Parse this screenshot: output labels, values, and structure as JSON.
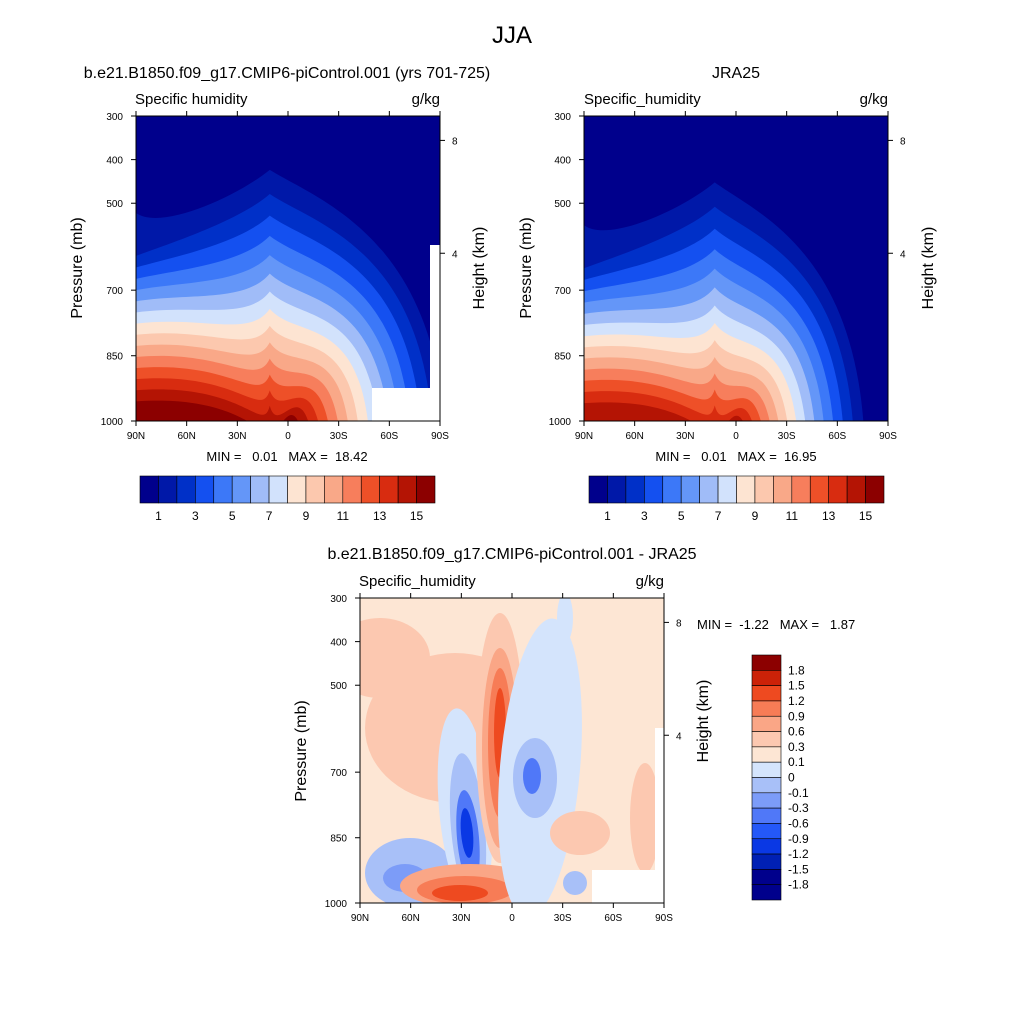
{
  "figure_title": "JJA",
  "colors": {
    "abs_scale": [
      "#00008c",
      "#0018a8",
      "#0030c8",
      "#1450f0",
      "#3c78f8",
      "#6496f8",
      "#a0bcf8",
      "#d2e2fc",
      "#fde4d2",
      "#fcc8ae",
      "#f9a888",
      "#f77e5c",
      "#ee5028",
      "#d82c10",
      "#b41404",
      "#8c0000"
    ],
    "diff_scale": [
      "#00008c",
      "#0020b4",
      "#0a38e4",
      "#2458f8",
      "#5078f8",
      "#7c9cf8",
      "#a8c0f8",
      "#d4e4fc",
      "#fde6d4",
      "#fcc8b0",
      "#faa686",
      "#f77c56",
      "#ee4a20",
      "#cc2208",
      "#8c0000"
    ]
  },
  "chart_data": [
    {
      "type": "heatmap",
      "title": "b.e21.B1850.f09_g17.CMIP6-piControl.001 (yrs 701-725)",
      "left_label": "Specific humidity",
      "right_label": "g/kg",
      "ylabel": "Pressure (mb)",
      "ylabel_right": "Height (km)",
      "x_ticks": [
        "90N",
        "60N",
        "30N",
        "0",
        "30S",
        "60S",
        "90S"
      ],
      "y_ticks": [
        "300",
        "400",
        "500",
        "700",
        "850",
        "1000"
      ],
      "y_right_ticks": [
        "8",
        "4"
      ],
      "min_max_text": "MIN =   0.01   MAX =  18.42",
      "min": 0.01,
      "max": 18.42,
      "colorbar_labels": [
        "1",
        "3",
        "5",
        "7",
        "9",
        "11",
        "13",
        "15"
      ]
    },
    {
      "type": "heatmap",
      "title": "JRA25",
      "left_label": "Specific_humidity",
      "right_label": "g/kg",
      "ylabel": "Pressure (mb)",
      "ylabel_right": "Height (km)",
      "x_ticks": [
        "90N",
        "60N",
        "30N",
        "0",
        "30S",
        "60S",
        "90S"
      ],
      "y_ticks": [
        "300",
        "400",
        "500",
        "700",
        "850",
        "1000"
      ],
      "y_right_ticks": [
        "8",
        "4"
      ],
      "min_max_text": "MIN =   0.01   MAX =  16.95",
      "min": 0.01,
      "max": 16.95,
      "colorbar_labels": [
        "1",
        "3",
        "5",
        "7",
        "9",
        "11",
        "13",
        "15"
      ]
    },
    {
      "type": "heatmap",
      "title": "b.e21.B1850.f09_g17.CMIP6-piControl.001 - JRA25",
      "left_label": "Specific_humidity",
      "right_label": "g/kg",
      "ylabel": "Pressure (mb)",
      "ylabel_right": "Height (km)",
      "x_ticks": [
        "90N",
        "60N",
        "30N",
        "0",
        "30S",
        "60S",
        "90S"
      ],
      "y_ticks": [
        "300",
        "400",
        "500",
        "700",
        "850",
        "1000"
      ],
      "y_right_ticks": [
        "8",
        "4"
      ],
      "min_max_text": "MIN =  -1.22   MAX =   1.87",
      "min": -1.22,
      "max": 1.87,
      "colorbar_labels": [
        "1.8",
        "1.5",
        "1.2",
        "0.9",
        "0.6",
        "0.3",
        "0.1",
        "0",
        "-0.1",
        "-0.3",
        "-0.6",
        "-0.9",
        "-1.2",
        "-1.5",
        "-1.8"
      ]
    }
  ]
}
